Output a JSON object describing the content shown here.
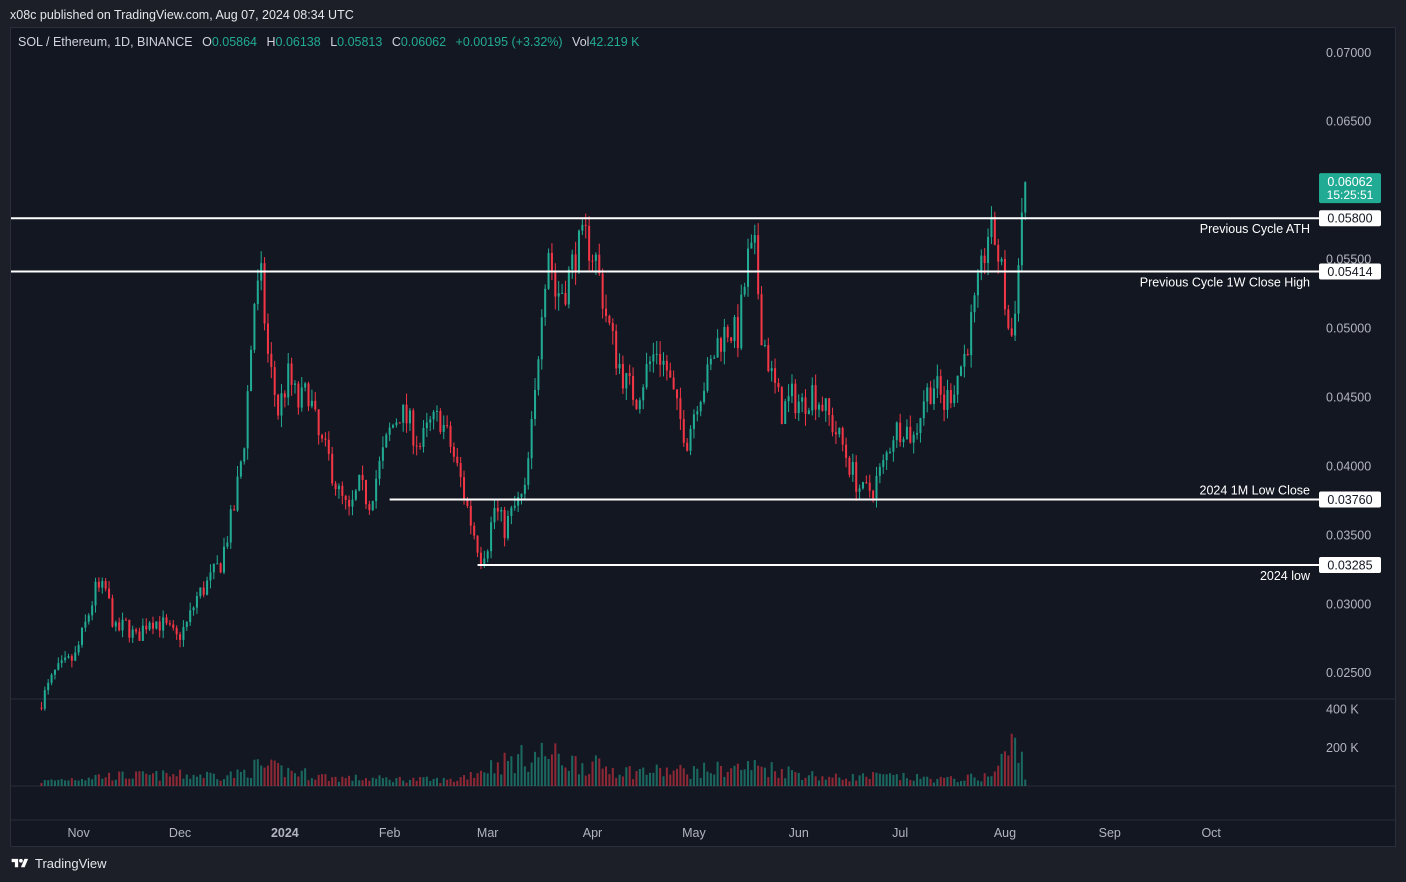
{
  "header": {
    "published": "x08c published on TradingView.com, Aug 07, 2024 08:34 UTC"
  },
  "legend": {
    "symbol": "SOL / Ethereum, 1D, BINANCE",
    "o_label": "O",
    "o": "0.05864",
    "h_label": "H",
    "h": "0.06138",
    "l_label": "L",
    "l": "0.05813",
    "c_label": "C",
    "c": "0.06062",
    "change": "+0.00195 (+3.32%)",
    "vol_label": "Vol",
    "vol": "42.219 K"
  },
  "colors": {
    "up": "#22ab94",
    "down": "#f23645",
    "background": "#131722",
    "grid": "#1e222d",
    "line": "#ffffff"
  },
  "price_badge": {
    "price": "0.06062",
    "countdown": "15:25:51"
  },
  "footer": {
    "brand": "TradingView"
  },
  "chart_data": {
    "type": "candlestick",
    "price_ticks": [
      "0.07000",
      "0.06500",
      "0.05500",
      "0.05000",
      "0.04500",
      "0.04000",
      "0.03500",
      "0.03000",
      "0.02500"
    ],
    "price_tick_values": [
      0.07,
      0.065,
      0.055,
      0.05,
      0.045,
      0.04,
      0.035,
      0.03,
      0.025
    ],
    "volume_ticks": [
      "400 K",
      "200 K"
    ],
    "volume_tick_values": [
      400000,
      200000
    ],
    "time_labels": [
      "Nov",
      "Dec",
      "2024",
      "Feb",
      "Mar",
      "Apr",
      "May",
      "Jun",
      "Jul",
      "Aug",
      "Sep",
      "Oct"
    ],
    "time_label_dates": [
      "2023-11-01",
      "2023-12-01",
      "2024-01-01",
      "2024-02-01",
      "2024-03-01",
      "2024-04-01",
      "2024-05-01",
      "2024-06-01",
      "2024-07-01",
      "2024-08-01",
      "2024-09-01",
      "2024-10-01"
    ],
    "x_range": [
      "2023-10-12",
      "2024-11-01"
    ],
    "y_range": [
      0.0232,
      0.0718
    ],
    "horizontal_lines": [
      {
        "price": 0.058,
        "label": "0.05800",
        "text": "Previous Cycle ATH",
        "start": "2023-10-12"
      },
      {
        "price": 0.05414,
        "label": "0.05414",
        "text": "Previous Cycle 1W Close High",
        "start": "2023-10-12"
      },
      {
        "price": 0.0376,
        "label": "0.03760",
        "text": "2024 1M Low Close",
        "start": "2024-02-01"
      },
      {
        "price": 0.03285,
        "label": "0.03285",
        "text": "2024 low",
        "start": "2024-02-27"
      }
    ],
    "price_path": [
      [
        "2023-10-20",
        0.0225
      ],
      [
        "2023-10-25",
        0.025
      ],
      [
        "2023-10-31",
        0.0262
      ],
      [
        "2023-11-03",
        0.0285
      ],
      [
        "2023-11-06",
        0.031
      ],
      [
        "2023-11-09",
        0.031
      ],
      [
        "2023-11-12",
        0.028
      ],
      [
        "2023-11-15",
        0.0285
      ],
      [
        "2023-11-18",
        0.0275
      ],
      [
        "2023-11-22",
        0.029
      ],
      [
        "2023-11-26",
        0.0285
      ],
      [
        "2023-11-30",
        0.0275
      ],
      [
        "2023-12-03",
        0.0285
      ],
      [
        "2023-12-06",
        0.0305
      ],
      [
        "2023-12-10",
        0.0318
      ],
      [
        "2023-12-13",
        0.033
      ],
      [
        "2023-12-17",
        0.037
      ],
      [
        "2023-12-20",
        0.042
      ],
      [
        "2023-12-23",
        0.052
      ],
      [
        "2023-12-25",
        0.0535
      ],
      [
        "2023-12-27",
        0.048
      ],
      [
        "2023-12-30",
        0.044
      ],
      [
        "2024-01-02",
        0.0465
      ],
      [
        "2024-01-05",
        0.0445
      ],
      [
        "2024-01-08",
        0.0455
      ],
      [
        "2024-01-11",
        0.042
      ],
      [
        "2024-01-14",
        0.0405
      ],
      [
        "2024-01-17",
        0.038
      ],
      [
        "2024-01-20",
        0.0365
      ],
      [
        "2024-01-23",
        0.0385
      ],
      [
        "2024-01-26",
        0.0375
      ],
      [
        "2024-01-29",
        0.04
      ],
      [
        "2024-02-01",
        0.0425
      ],
      [
        "2024-02-04",
        0.044
      ],
      [
        "2024-02-07",
        0.043
      ],
      [
        "2024-02-10",
        0.0415
      ],
      [
        "2024-02-13",
        0.043
      ],
      [
        "2024-02-16",
        0.0435
      ],
      [
        "2024-02-19",
        0.0415
      ],
      [
        "2024-02-22",
        0.039
      ],
      [
        "2024-02-25",
        0.036
      ],
      [
        "2024-02-28",
        0.0335
      ],
      [
        "2024-03-01",
        0.0345
      ],
      [
        "2024-03-03",
        0.037
      ],
      [
        "2024-03-06",
        0.0355
      ],
      [
        "2024-03-09",
        0.037
      ],
      [
        "2024-03-12",
        0.038
      ],
      [
        "2024-03-15",
        0.045
      ],
      [
        "2024-03-17",
        0.052
      ],
      [
        "2024-03-19",
        0.056
      ],
      [
        "2024-03-21",
        0.0525
      ],
      [
        "2024-03-24",
        0.053
      ],
      [
        "2024-03-27",
        0.0555
      ],
      [
        "2024-03-30",
        0.0565
      ],
      [
        "2024-04-02",
        0.055
      ],
      [
        "2024-04-05",
        0.051
      ],
      [
        "2024-04-08",
        0.048
      ],
      [
        "2024-04-11",
        0.046
      ],
      [
        "2024-04-14",
        0.045
      ],
      [
        "2024-04-17",
        0.047
      ],
      [
        "2024-04-20",
        0.0485
      ],
      [
        "2024-04-23",
        0.047
      ],
      [
        "2024-04-26",
        0.044
      ],
      [
        "2024-04-29",
        0.042
      ],
      [
        "2024-05-02",
        0.045
      ],
      [
        "2024-05-05",
        0.0465
      ],
      [
        "2024-05-08",
        0.049
      ],
      [
        "2024-05-11",
        0.05
      ],
      [
        "2024-05-14",
        0.0495
      ],
      [
        "2024-05-17",
        0.055
      ],
      [
        "2024-05-19",
        0.0555
      ],
      [
        "2024-05-21",
        0.05
      ],
      [
        "2024-05-24",
        0.0465
      ],
      [
        "2024-05-27",
        0.044
      ],
      [
        "2024-05-30",
        0.045
      ],
      [
        "2024-06-02",
        0.0445
      ],
      [
        "2024-06-05",
        0.0455
      ],
      [
        "2024-06-08",
        0.0445
      ],
      [
        "2024-06-11",
        0.043
      ],
      [
        "2024-06-14",
        0.0415
      ],
      [
        "2024-06-17",
        0.0395
      ],
      [
        "2024-06-20",
        0.038
      ],
      [
        "2024-06-23",
        0.0385
      ],
      [
        "2024-06-26",
        0.04
      ],
      [
        "2024-06-29",
        0.0425
      ],
      [
        "2024-07-02",
        0.043
      ],
      [
        "2024-07-05",
        0.042
      ],
      [
        "2024-07-08",
        0.045
      ],
      [
        "2024-07-11",
        0.046
      ],
      [
        "2024-07-14",
        0.0445
      ],
      [
        "2024-07-17",
        0.046
      ],
      [
        "2024-07-20",
        0.048
      ],
      [
        "2024-07-23",
        0.0515
      ],
      [
        "2024-07-25",
        0.054
      ],
      [
        "2024-07-27",
        0.057
      ],
      [
        "2024-07-29",
        0.0565
      ],
      [
        "2024-07-31",
        0.054
      ],
      [
        "2024-08-02",
        0.05
      ],
      [
        "2024-08-03",
        0.0495
      ],
      [
        "2024-08-05",
        0.0545
      ],
      [
        "2024-08-06",
        0.0586
      ],
      [
        "2024-08-07",
        0.06062
      ]
    ],
    "volume_path": [
      [
        "2023-10-20",
        25000
      ],
      [
        "2023-11-06",
        60000
      ],
      [
        "2023-12-18",
        70000
      ],
      [
        "2023-12-24",
        120000
      ],
      [
        "2024-01-15",
        50000
      ],
      [
        "2024-02-20",
        35000
      ],
      [
        "2024-03-03",
        130000
      ],
      [
        "2024-03-18",
        200000
      ],
      [
        "2024-03-25",
        150000
      ],
      [
        "2024-04-12",
        90000
      ],
      [
        "2024-04-30",
        90000
      ],
      [
        "2024-05-20",
        120000
      ],
      [
        "2024-06-10",
        50000
      ],
      [
        "2024-06-25",
        60000
      ],
      [
        "2024-07-15",
        40000
      ],
      [
        "2024-07-28",
        60000
      ],
      [
        "2024-08-05",
        300000
      ],
      [
        "2024-08-07",
        42219
      ]
    ],
    "volume_max": 450000
  }
}
